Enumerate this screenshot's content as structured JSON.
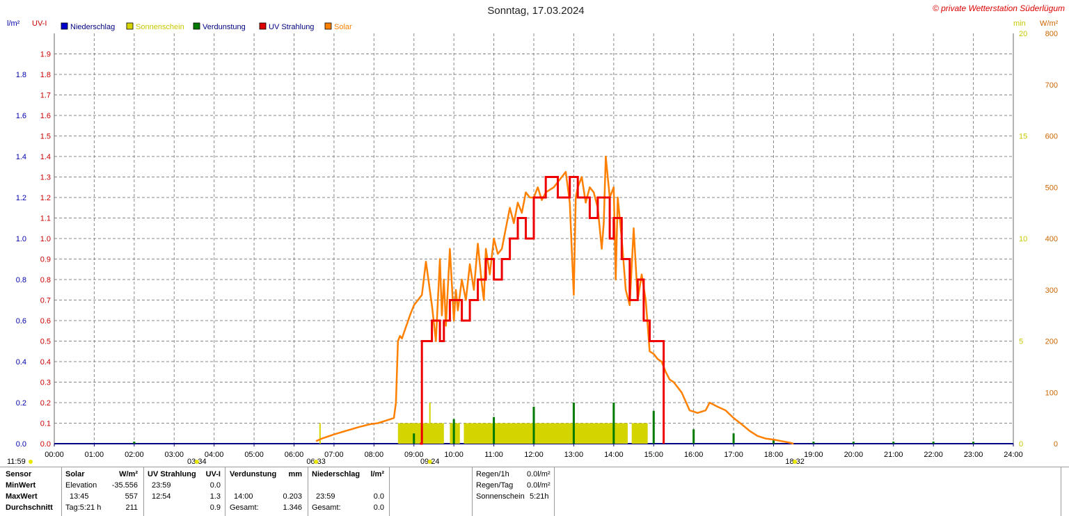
{
  "chart_data": {
    "type": "line",
    "title": "Sonntag, 17.03.2024",
    "copyright": "© private Wetterstation Süderlügum",
    "legend": [
      {
        "label": "Niederschlag",
        "color": "#0000cc",
        "text_color": "#000080"
      },
      {
        "label": "Sonnenschein",
        "color": "#d4d400",
        "text_color": "#c8c800"
      },
      {
        "label": "Verdunstung",
        "color": "#007a00",
        "text_color": "#000080"
      },
      {
        "label": "UV Strahlung",
        "color": "#dd0000",
        "text_color": "#000080"
      },
      {
        "label": "Solar",
        "color": "#ff8000",
        "text_color": "#ff8000"
      }
    ],
    "axes": {
      "left_outer": {
        "unit": "l/m²",
        "color": "#0000aa",
        "range": [
          0,
          2
        ],
        "ticks": [
          "0.0",
          "0.2",
          "0.4",
          "0.6",
          "0.8",
          "1.0",
          "1.2",
          "1.4",
          "1.6",
          "1.8"
        ]
      },
      "left_inner": {
        "unit": "UV-I",
        "color": "#cc0000",
        "range": [
          0,
          2
        ],
        "ticks": [
          "0.0",
          "0.1",
          "0.2",
          "0.3",
          "0.4",
          "0.5",
          "0.6",
          "0.7",
          "0.8",
          "0.9",
          "1.0",
          "1.1",
          "1.2",
          "1.3",
          "1.4",
          "1.5",
          "1.6",
          "1.7",
          "1.8",
          "1.9"
        ]
      },
      "right_inner": {
        "unit": "min",
        "color": "#c8c800",
        "range": [
          0,
          20
        ],
        "ticks": [
          "0",
          "5",
          "10",
          "15",
          "20"
        ]
      },
      "right_outer": {
        "unit": "W/m²",
        "color": "#cc6600",
        "range": [
          0,
          800
        ],
        "ticks": [
          "0",
          "100",
          "200",
          "300",
          "400",
          "500",
          "600",
          "700",
          "800"
        ]
      },
      "x": {
        "range": [
          0,
          24
        ],
        "ticks": [
          "00:00",
          "01:00",
          "02:00",
          "03:00",
          "04:00",
          "05:00",
          "06:00",
          "07:00",
          "08:00",
          "09:00",
          "10:00",
          "11:00",
          "12:00",
          "13:00",
          "14:00",
          "15:00",
          "16:00",
          "17:00",
          "18:00",
          "19:00",
          "20:00",
          "21:00",
          "22:00",
          "23:00",
          "24:00"
        ]
      }
    },
    "grid": true,
    "markers": [
      {
        "label": "11:59",
        "hour": 0
      },
      {
        "label": "03:34",
        "hour": 3.567
      },
      {
        "label": "06:33",
        "hour": 6.55
      },
      {
        "label": "09:24",
        "hour": 9.4
      },
      {
        "label": "18:32",
        "hour": 18.533
      }
    ],
    "solar_series": {
      "name": "Solar",
      "unit": "W/m²",
      "x": [
        6.55,
        6.7,
        7.0,
        7.3,
        7.6,
        7.9,
        8.1,
        8.3,
        8.5,
        8.55,
        8.6,
        8.65,
        8.7,
        8.9,
        9.0,
        9.1,
        9.2,
        9.3,
        9.45,
        9.55,
        9.65,
        9.7,
        9.75,
        9.8,
        9.9,
        10.0,
        10.05,
        10.1,
        10.2,
        10.3,
        10.4,
        10.5,
        10.6,
        10.7,
        10.75,
        10.8,
        10.9,
        11.0,
        11.1,
        11.2,
        11.3,
        11.4,
        11.5,
        11.6,
        11.7,
        11.8,
        11.9,
        12.0,
        12.1,
        12.2,
        12.3,
        12.5,
        12.7,
        12.8,
        12.9,
        12.95,
        13.0,
        13.05,
        13.1,
        13.2,
        13.3,
        13.4,
        13.5,
        13.6,
        13.7,
        13.75,
        13.8,
        13.9,
        14.0,
        14.05,
        14.1,
        14.2,
        14.3,
        14.4,
        14.5,
        14.6,
        14.7,
        14.8,
        14.9,
        15.0,
        15.1,
        15.2,
        15.3,
        15.4,
        15.5,
        15.7,
        15.9,
        16.1,
        16.3,
        16.4,
        16.6,
        16.8,
        17.0,
        17.2,
        17.4,
        17.6,
        17.8,
        18.0,
        18.2,
        18.4,
        18.5
      ],
      "y": [
        5,
        10,
        18,
        25,
        32,
        38,
        40,
        45,
        50,
        80,
        200,
        210,
        205,
        250,
        270,
        280,
        290,
        355,
        270,
        200,
        360,
        250,
        320,
        230,
        380,
        240,
        300,
        260,
        320,
        280,
        350,
        300,
        390,
        310,
        280,
        380,
        330,
        400,
        370,
        380,
        420,
        460,
        430,
        470,
        450,
        490,
        480,
        480,
        500,
        475,
        490,
        500,
        520,
        530,
        470,
        380,
        290,
        480,
        500,
        520,
        470,
        500,
        490,
        460,
        380,
        430,
        560,
        480,
        500,
        320,
        480,
        400,
        300,
        270,
        420,
        280,
        330,
        280,
        180,
        175,
        165,
        160,
        140,
        125,
        120,
        100,
        65,
        60,
        65,
        80,
        72,
        65,
        50,
        38,
        25,
        15,
        10,
        8,
        5,
        2,
        0
      ]
    },
    "uv_series": {
      "name": "UV Strahlung",
      "unit": "UV-I",
      "x": [
        9.15,
        9.2,
        9.45,
        9.65,
        9.75,
        9.9,
        10.2,
        10.4,
        10.6,
        10.8,
        11.0,
        11.2,
        11.4,
        11.6,
        11.8,
        12.0,
        12.3,
        12.6,
        12.9,
        13.1,
        13.4,
        13.6,
        13.9,
        14.0,
        14.2,
        14.4,
        14.6,
        14.75,
        14.9,
        15.0,
        15.1,
        15.25
      ],
      "y": [
        0.0,
        0.5,
        0.6,
        0.5,
        0.6,
        0.7,
        0.6,
        0.7,
        0.8,
        0.9,
        0.8,
        0.9,
        1.0,
        1.1,
        1.0,
        1.2,
        1.3,
        1.2,
        1.3,
        1.2,
        1.1,
        1.2,
        1.0,
        1.1,
        0.9,
        0.7,
        0.8,
        0.6,
        0.5,
        0.5,
        0.5,
        0.0
      ]
    },
    "sunshine_blocks": {
      "name": "Sonnenschein",
      "unit": "min",
      "blocks": [
        [
          8.6,
          9.75,
          1.0
        ],
        [
          9.9,
          10.15,
          1.0
        ],
        [
          10.25,
          14.35,
          1.0
        ],
        [
          14.45,
          14.85,
          1.0
        ]
      ],
      "spikes": [
        [
          6.65,
          1.0
        ],
        [
          9.4,
          2.0
        ]
      ]
    },
    "evaporation_spikes": {
      "name": "Verdunstung",
      "unit": "mm",
      "x": [
        2,
        9,
        10,
        11,
        12,
        13,
        14,
        15,
        16,
        17,
        18,
        19,
        20,
        21,
        22,
        23
      ],
      "y": [
        0.01,
        0.05,
        0.12,
        0.13,
        0.18,
        0.2,
        0.2,
        0.16,
        0.07,
        0.05,
        0.02,
        0.01,
        0.01,
        0.01,
        0.01,
        0.01
      ]
    }
  },
  "stats": {
    "headers": {
      "sensor": "Sensor",
      "solar": "Solar",
      "solar_unit": "W/m²",
      "uv": "UV Strahlung",
      "uv_unit": "UV-I",
      "evap": "Verdunstung",
      "evap_unit": "mm",
      "rain": "Niederschlag",
      "rain_unit": "l/m²"
    },
    "rows": {
      "min": "MinWert",
      "max": "MaxWert",
      "avg": "Durchschnitt"
    },
    "solar": {
      "min_label": "Elevation",
      "min_value": "-35.556",
      "max_time": "13:45",
      "max_value": "557",
      "avg_label": "Tag:5:21 h",
      "avg_value": "211"
    },
    "uv": {
      "min_time": "23:59",
      "min_value": "0.0",
      "max_time": "12:54",
      "max_value": "1.3",
      "avg_value": "0.9"
    },
    "evap": {
      "max_time": "14:00",
      "max_value": "0.203",
      "total_label": "Gesamt:",
      "total_value": "1.346"
    },
    "rain": {
      "min_time": "23:59",
      "min_value": "0.0",
      "total_label": "Gesamt:",
      "total_value": "0.0"
    },
    "summary": [
      {
        "label": "Regen/1h",
        "value": "0.0l/m²"
      },
      {
        "label": "Regen/Tag",
        "value": "0.0l/m²"
      },
      {
        "label": "Sonnenschein",
        "value": "5:21h"
      }
    ]
  }
}
